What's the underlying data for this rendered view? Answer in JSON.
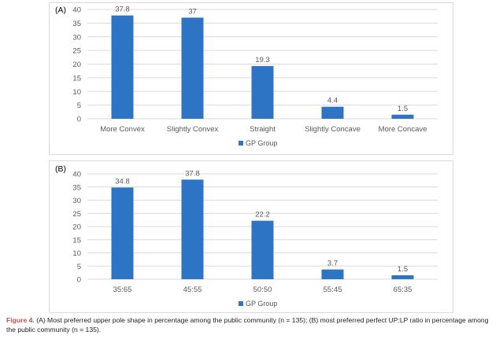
{
  "chart_data": [
    {
      "type": "bar",
      "panel_label": "(A)",
      "categories": [
        "More Convex",
        "Slightly Convex",
        "Straight",
        "Slightly Concave",
        "More Concave"
      ],
      "series": [
        {
          "name": "GP Group",
          "values": [
            37.8,
            37,
            19.3,
            4.4,
            1.5
          ],
          "color": "#2e74c4"
        }
      ],
      "data_labels": [
        "37.8",
        "37",
        "19.3",
        "4.4",
        "1.5"
      ],
      "yticks": [
        0,
        5,
        10,
        15,
        20,
        25,
        30,
        35,
        40
      ],
      "ylim": [
        0,
        40
      ],
      "grid": true,
      "legend_position": "bottom"
    },
    {
      "type": "bar",
      "panel_label": "(B)",
      "categories": [
        "35:65",
        "45:55",
        "50:50",
        "55:45",
        "65:35"
      ],
      "series": [
        {
          "name": "GP Group",
          "values": [
            34.8,
            37.8,
            22.2,
            3.7,
            1.5
          ],
          "color": "#2e74c4"
        }
      ],
      "data_labels": [
        "34.8",
        "37.8",
        "22.2",
        "3.7",
        "1.5"
      ],
      "yticks": [
        0,
        5,
        10,
        15,
        20,
        25,
        30,
        35,
        40
      ],
      "ylim": [
        0,
        40
      ],
      "grid": true,
      "legend_position": "bottom"
    }
  ],
  "caption": {
    "label": "Figure 4.",
    "text": "(A) Most preferred upper pole shape in percentage among the public community (n = 135); (B) most preferred perfect UP:LP ratio in percentage among the public community (n = 135)."
  },
  "colors": {
    "bar": "#2e74c4",
    "grid": "#d9d9d9",
    "text": "#595959",
    "caption_label": "#c0504d"
  }
}
